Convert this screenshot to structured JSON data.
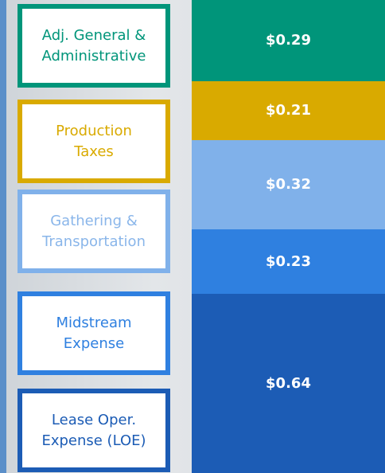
{
  "chart_data": {
    "type": "stacked-bar",
    "categories": [
      "Adj. General &\nAdministrative",
      "Production\nTaxes",
      "Gathering &\nTransportation",
      "Midstream\nExpense",
      "Lease Oper.\nExpense (LOE)"
    ],
    "values": [
      0.29,
      0.21,
      0.32,
      0.23,
      0.64
    ],
    "value_labels": [
      "$0.29",
      "$0.21",
      "$0.32",
      "$0.23",
      "$0.64"
    ],
    "colors": [
      "#00957a",
      "#d9aa00",
      "#80b1ea",
      "#2f80e0",
      "#1c5cb5"
    ],
    "label_colors": [
      "#00957a",
      "#d9aa00",
      "#8ab6ea",
      "#2f80e0",
      "#1c5cb5"
    ]
  }
}
